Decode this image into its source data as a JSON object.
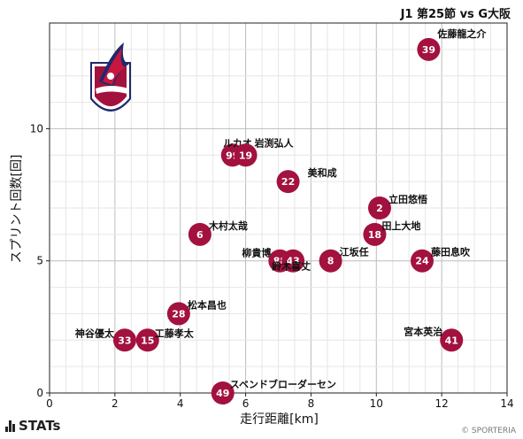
{
  "title": "J1 第25節 vs G大阪",
  "brand": {
    "name": "STATs",
    "copyright": "© SPORTERIA"
  },
  "chart_data": {
    "type": "scatter",
    "xlabel": "走行距離[km]",
    "ylabel": "スプリント回数[回]",
    "xlim": [
      0,
      14
    ],
    "ylim": [
      0,
      14
    ],
    "xticks": [
      0,
      2,
      4,
      6,
      8,
      10,
      12,
      14
    ],
    "yticks": [
      0,
      5,
      10
    ],
    "grid": true,
    "marker_color": "#a3113f",
    "points": [
      {
        "number": "39",
        "name": "佐藤龍之介",
        "x": 11.6,
        "y": 13
      },
      {
        "number": "99",
        "name": "ルカオ",
        "x": 5.6,
        "y": 9
      },
      {
        "number": "19",
        "name": "岩渕弘人",
        "x": 6.0,
        "y": 9
      },
      {
        "number": "22",
        "name": "美和成",
        "x": 7.3,
        "y": 8
      },
      {
        "number": "2",
        "name": "立田悠悟",
        "x": 10.1,
        "y": 7
      },
      {
        "number": "18",
        "name": "田上大地",
        "x": 9.95,
        "y": 6
      },
      {
        "number": "6",
        "name": "木村太哉",
        "x": 4.6,
        "y": 6
      },
      {
        "number": "88",
        "name": "柳貴博",
        "x": 7.05,
        "y": 5
      },
      {
        "number": "43",
        "name": "鈴木喜丈",
        "x": 7.45,
        "y": 5
      },
      {
        "number": "8",
        "name": "江坂任",
        "x": 8.6,
        "y": 5
      },
      {
        "number": "24",
        "name": "藤田息吹",
        "x": 11.4,
        "y": 5
      },
      {
        "number": "28",
        "name": "松本昌也",
        "x": 3.95,
        "y": 3
      },
      {
        "number": "33",
        "name": "神谷優太",
        "x": 2.3,
        "y": 2
      },
      {
        "number": "15",
        "name": "工藤孝太",
        "x": 3.0,
        "y": 2
      },
      {
        "number": "41",
        "name": "宮本英治",
        "x": 12.3,
        "y": 2
      },
      {
        "number": "49",
        "name": "スベンドブローダーセン",
        "x": 5.3,
        "y": 0
      }
    ]
  }
}
